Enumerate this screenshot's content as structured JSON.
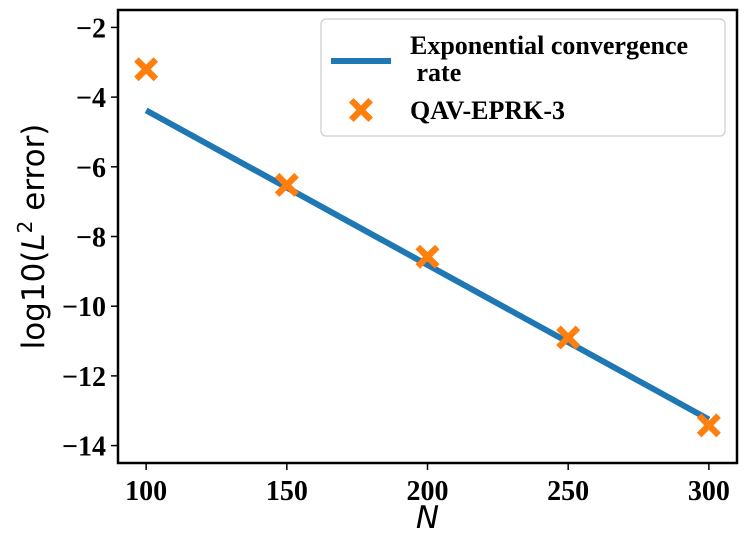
{
  "chart_data": {
    "type": "line+scatter",
    "title": "",
    "xlabel": "N",
    "ylabel_prefix": "log10(",
    "ylabel_var": "L",
    "ylabel_sup": "2",
    "ylabel_suffix": " error)",
    "xlim": [
      90,
      310
    ],
    "ylim": [
      -14.5,
      -1.5
    ],
    "xticks": [
      100,
      150,
      200,
      250,
      300
    ],
    "yticks": [
      -2,
      -4,
      -6,
      -8,
      -10,
      -12,
      -14
    ],
    "xtick_labels": [
      "100",
      "150",
      "200",
      "250",
      "300"
    ],
    "ytick_labels": [
      "−2",
      "−4",
      "−6",
      "−8",
      "−10",
      "−12",
      "−14"
    ],
    "series": [
      {
        "name": "Exponential convergence rate",
        "legend_line1": "Exponential convergence",
        "legend_line2": " rate",
        "type": "line",
        "color": "#1f77b4",
        "x": [
          100,
          300
        ],
        "y": [
          -4.38,
          -13.25
        ]
      },
      {
        "name": "QAV-EPRK-3",
        "type": "scatter",
        "marker": "X",
        "color": "#ff7f0e",
        "x": [
          100,
          150,
          200,
          250,
          300
        ],
        "y": [
          -3.2,
          -6.52,
          -8.58,
          -10.9,
          -13.42
        ]
      }
    ],
    "legend_position": "top-right",
    "grid": false
  }
}
